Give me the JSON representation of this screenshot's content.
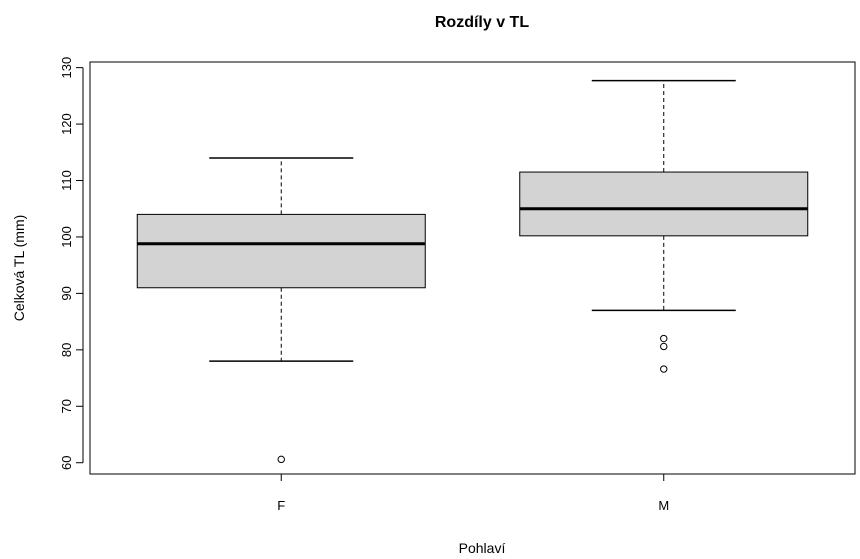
{
  "chart_data": {
    "type": "boxplot",
    "title": "Rozdíly v TL",
    "xlabel": "Pohlaví",
    "ylabel": "Celková TL (mm)",
    "ylim": [
      58,
      131
    ],
    "yticks": [
      60,
      70,
      80,
      90,
      100,
      110,
      120,
      130
    ],
    "categories": [
      "F",
      "M"
    ],
    "box_color": "#d3d3d3",
    "boxes": [
      {
        "category": "F",
        "whisker_low": 78,
        "q1": 91,
        "median": 98.8,
        "q3": 104,
        "whisker_high": 114,
        "outliers": [
          60.6
        ]
      },
      {
        "category": "M",
        "whisker_low": 87,
        "q1": 100.2,
        "median": 105,
        "q3": 111.5,
        "whisker_high": 127.7,
        "outliers": [
          82,
          80.6,
          76.6
        ]
      }
    ]
  }
}
